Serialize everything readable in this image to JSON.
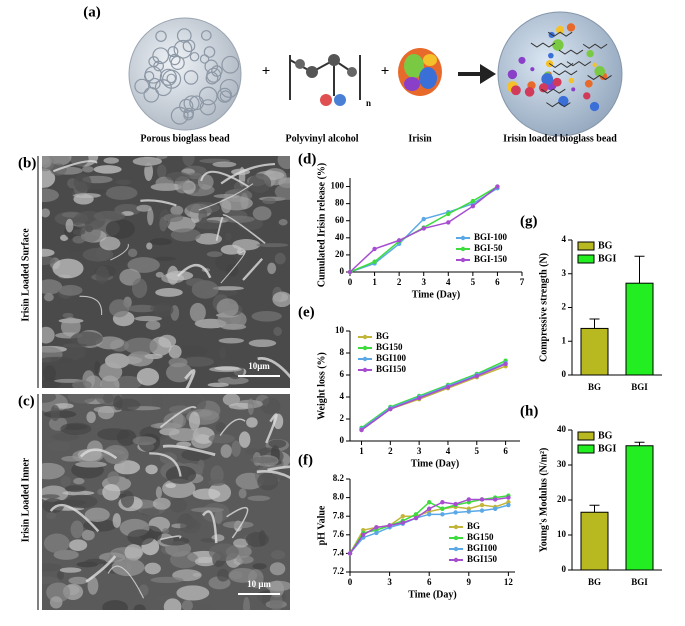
{
  "panels": {
    "a": {
      "label": "(a)",
      "items": [
        "Porous bioglass bead",
        "Polyvinyl alcohol",
        "Irisin",
        "Irisin loaded bioglass bead"
      ],
      "subscript": "n"
    },
    "b": {
      "label": "(b)",
      "caption": "Irisin Loaded Surface",
      "scale": "10μm"
    },
    "c": {
      "label": "(c)",
      "caption": "Irisin Loaded Inner",
      "scale": "10 μm"
    }
  },
  "chart_data": [
    {
      "type": "line",
      "label": "(d)",
      "x_label": "Time (Day)",
      "y_label": "Cumulated Irisin release (%)",
      "x": [
        0,
        1,
        2,
        3,
        4,
        5,
        6
      ],
      "xlim": [
        0,
        7
      ],
      "xticks": [
        0,
        1,
        2,
        3,
        4,
        5,
        6,
        7
      ],
      "ylim": [
        0,
        110
      ],
      "yticks": [
        0,
        20,
        40,
        60,
        80,
        100
      ],
      "legend": "lower right",
      "series": [
        {
          "name": "BGI-100",
          "color": "#5aa9e6",
          "values": [
            0,
            10,
            33,
            62,
            70,
            80,
            98
          ]
        },
        {
          "name": "BGI-50",
          "color": "#3ddc3d",
          "values": [
            0,
            12,
            36,
            52,
            68,
            83,
            100
          ]
        },
        {
          "name": "BGI-150",
          "color": "#a64dd0",
          "values": [
            0,
            27,
            37,
            51,
            58,
            77,
            100
          ]
        }
      ]
    },
    {
      "type": "line",
      "label": "(e)",
      "x_label": "Time (Day)",
      "y_label": "Weight loss (%)",
      "x": [
        1,
        2,
        3,
        4,
        5,
        6
      ],
      "xlim": [
        0.6,
        6.5
      ],
      "xticks": [
        1,
        2,
        3,
        4,
        5,
        6
      ],
      "ylim": [
        0,
        10
      ],
      "yticks": [
        0,
        2,
        4,
        6,
        8,
        10
      ],
      "legend": "upper left",
      "series": [
        {
          "name": "BG",
          "color": "#c2b53a",
          "values": [
            1.0,
            2.9,
            3.8,
            4.8,
            5.8,
            6.8
          ]
        },
        {
          "name": "BG150",
          "color": "#3ddc3d",
          "values": [
            1.2,
            3.1,
            4.1,
            5.1,
            6.1,
            7.3
          ]
        },
        {
          "name": "BGI100",
          "color": "#5aa9e6",
          "values": [
            1.1,
            3.0,
            4.0,
            5.0,
            6.0,
            7.1
          ]
        },
        {
          "name": "BGI150",
          "color": "#a64dd0",
          "values": [
            1.0,
            2.9,
            3.9,
            4.9,
            5.9,
            7.0
          ]
        }
      ]
    },
    {
      "type": "line",
      "label": "(f)",
      "x_label": "Time (Day)",
      "y_label": "pH Value",
      "x": [
        0,
        1,
        2,
        3,
        4,
        5,
        6,
        7,
        8,
        9,
        10,
        11,
        12
      ],
      "xlim": [
        0,
        12.5
      ],
      "xticks": [
        0,
        3,
        6,
        9,
        12
      ],
      "ylim": [
        7.2,
        8.2
      ],
      "yticks": [
        7.2,
        7.4,
        7.6,
        7.8,
        {
          "value": 8,
          "label": "8.0"
        },
        8.2
      ],
      "legend": "lower right",
      "series": [
        {
          "name": "BG",
          "color": "#c2b53a",
          "values": [
            7.4,
            7.65,
            7.68,
            7.7,
            7.8,
            7.8,
            7.85,
            7.88,
            7.9,
            7.88,
            7.92,
            7.9,
            7.95
          ]
        },
        {
          "name": "BG150",
          "color": "#3ddc3d",
          "values": [
            7.4,
            7.62,
            7.65,
            7.7,
            7.75,
            7.82,
            7.95,
            7.88,
            7.92,
            7.95,
            7.98,
            8.0,
            8.02
          ]
        },
        {
          "name": "BGI100",
          "color": "#5aa9e6",
          "values": [
            7.4,
            7.57,
            7.62,
            7.68,
            7.72,
            7.78,
            7.82,
            7.82,
            7.84,
            7.85,
            7.86,
            7.88,
            7.92
          ]
        },
        {
          "name": "BGI150",
          "color": "#a64dd0",
          "values": [
            7.4,
            7.6,
            7.68,
            7.7,
            7.73,
            7.78,
            7.88,
            7.95,
            7.93,
            7.98,
            7.98,
            7.98,
            8.0
          ]
        }
      ]
    },
    {
      "type": "bar",
      "label": "(g)",
      "y_label": "Compressive strength (N)",
      "categories": [
        "BG",
        "BGI"
      ],
      "values": [
        1.38,
        2.72
      ],
      "errors": [
        0.28,
        0.8
      ],
      "colors": [
        "#b8b820",
        "#22ee22"
      ],
      "ylim": [
        0,
        4
      ],
      "yticks": [
        0,
        1,
        2,
        3,
        4
      ],
      "legend": "upper left"
    },
    {
      "type": "bar",
      "label": "(h)",
      "y_label": "Young's Modulus (N/m²)",
      "categories": [
        "BG",
        "BGI"
      ],
      "values": [
        16.5,
        35.5
      ],
      "errors": [
        2,
        1
      ],
      "colors": [
        "#b8b820",
        "#22ee22"
      ],
      "ylim": [
        0,
        40
      ],
      "yticks": [
        0,
        10,
        20,
        30,
        40
      ],
      "legend": "upper left"
    }
  ]
}
